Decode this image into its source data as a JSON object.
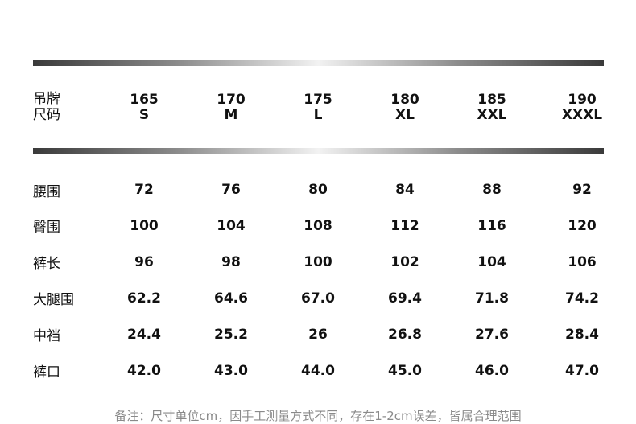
{
  "header": {
    "label_line1": "吊牌",
    "label_line2": "尺码",
    "sizes": [
      {
        "height": "165",
        "size": "S"
      },
      {
        "height": "170",
        "size": "M"
      },
      {
        "height": "175",
        "size": "L"
      },
      {
        "height": "180",
        "size": "XL"
      },
      {
        "height": "185",
        "size": "XXL"
      },
      {
        "height": "190",
        "size": "XXXL"
      }
    ]
  },
  "rows": [
    {
      "label": "腰围",
      "values": [
        "72",
        "76",
        "80",
        "84",
        "88",
        "92"
      ]
    },
    {
      "label": "臀围",
      "values": [
        "100",
        "104",
        "108",
        "112",
        "116",
        "120"
      ]
    },
    {
      "label": "裤长",
      "values": [
        "96",
        "98",
        "100",
        "102",
        "104",
        "106"
      ]
    },
    {
      "label": "大腿围",
      "values": [
        "62.2",
        "64.6",
        "67.0",
        "69.4",
        "71.8",
        "74.2"
      ]
    },
    {
      "label": "中裆",
      "values": [
        "24.4",
        "25.2",
        "26",
        "26.8",
        "27.6",
        "28.4"
      ]
    },
    {
      "label": "裤口",
      "values": [
        "42.0",
        "43.0",
        "44.0",
        "45.0",
        "46.0",
        "47.0"
      ]
    }
  ],
  "note": "备注：尺寸单位cm，因手工测量方式不同，存在1-2cm误差，皆属合理范围"
}
